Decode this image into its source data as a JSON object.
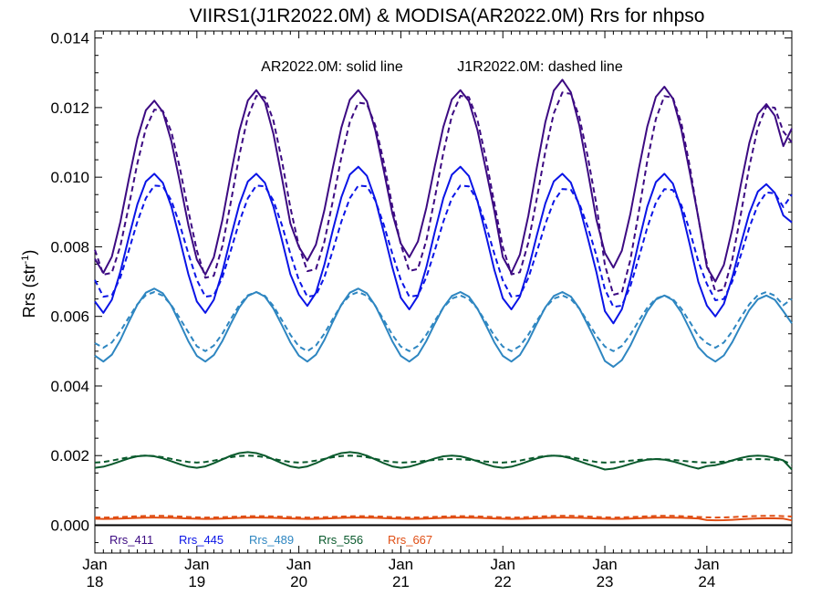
{
  "chart_data": {
    "type": "line",
    "title": "VIIRS1(J1R2022.0M) & MODISA(AR2022.0M)  Rrs for nhpso",
    "annotation": {
      "solid": "AR2022.0M: solid line",
      "dashed": "J1R2022.0M: dashed line"
    },
    "ylabel": "Rrs (str",
    "ylabel_sup": "-1",
    "ylabel_close": ")",
    "ylim": [
      -0.0008,
      0.0142
    ],
    "yticks": [
      "0.000",
      "0.002",
      "0.004",
      "0.006",
      "0.008",
      "0.010",
      "0.012",
      "0.014"
    ],
    "ytick_values": [
      0,
      0.002,
      0.004,
      0.006,
      0.008,
      0.01,
      0.012,
      0.014
    ],
    "xlim": [
      2018.0,
      2024.833
    ],
    "xticks": [
      {
        "top": "Jan",
        "bottom": "18",
        "x": 2018
      },
      {
        "top": "Jan",
        "bottom": "19",
        "x": 2019
      },
      {
        "top": "Jan",
        "bottom": "20",
        "x": 2020
      },
      {
        "top": "Jan",
        "bottom": "21",
        "x": 2021
      },
      {
        "top": "Jan",
        "bottom": "22",
        "x": 2022
      },
      {
        "top": "Jan",
        "bottom": "23",
        "x": 2023
      },
      {
        "top": "Jan",
        "bottom": "24",
        "x": 2024
      }
    ],
    "zero_line": true,
    "grid": false,
    "legend_placement": "bottom-left inside plot",
    "legend": [
      "Rrs_411",
      "Rrs_445",
      "Rrs_489",
      "Rrs_556",
      "Rrs_667"
    ],
    "series": [
      {
        "name": "Rrs_411",
        "color": "#3c0a82",
        "solid": {
          "min": [
            0.00725,
            0.0072,
            0.0076,
            0.0077,
            0.00725,
            0.0074,
            0.007
          ],
          "max": [
            0.0122,
            0.0125,
            0.0125,
            0.0125,
            0.0128,
            0.0126,
            0.0121
          ],
          "trough_phase": 0.1,
          "peak_phase": 0.58,
          "end_value": 0.0114
        },
        "dashed": {
          "min": [
            0.0071,
            0.007,
            0.0072,
            0.0072,
            0.0071,
            0.0065,
            0.0066
          ],
          "max": [
            0.012,
            0.0124,
            0.0122,
            0.0124,
            0.0125,
            0.0124,
            0.0121
          ],
          "trough_phase": 0.11,
          "peak_phase": 0.62,
          "end_value": 0.011
        }
      },
      {
        "name": "Rrs_445",
        "color": "#0a14e6",
        "solid": {
          "min": [
            0.0061,
            0.0061,
            0.0063,
            0.0062,
            0.0062,
            0.0058,
            0.006
          ],
          "max": [
            0.0101,
            0.0101,
            0.0103,
            0.0103,
            0.0101,
            0.0101,
            0.0098
          ],
          "trough_phase": 0.1,
          "peak_phase": 0.58,
          "end_value": 0.0087
        },
        "dashed": {
          "min": [
            0.0065,
            0.0065,
            0.0065,
            0.0065,
            0.0065,
            0.0062,
            0.0064
          ],
          "max": [
            0.0098,
            0.0098,
            0.0098,
            0.0098,
            0.0097,
            0.0097,
            0.0096
          ],
          "trough_phase": 0.11,
          "peak_phase": 0.62,
          "end_value": 0.0095
        }
      },
      {
        "name": "Rrs_489",
        "color": "#2e86c1",
        "solid": {
          "min": [
            0.0047,
            0.0047,
            0.0047,
            0.0047,
            0.0047,
            0.00455,
            0.0047
          ],
          "max": [
            0.0068,
            0.0067,
            0.0068,
            0.0067,
            0.0067,
            0.0066,
            0.0066
          ],
          "trough_phase": 0.12,
          "peak_phase": 0.58,
          "end_value": 0.0058
        },
        "dashed": {
          "min": [
            0.0051,
            0.005,
            0.005,
            0.005,
            0.005,
            0.005,
            0.0051
          ],
          "max": [
            0.0067,
            0.0067,
            0.0067,
            0.0066,
            0.0066,
            0.0066,
            0.0067
          ],
          "trough_phase": 0.12,
          "peak_phase": 0.58,
          "end_value": 0.0065
        }
      },
      {
        "name": "Rrs_556",
        "color": "#0a5a2d",
        "solid": {
          "min": [
            0.00165,
            0.00165,
            0.00165,
            0.00165,
            0.00165,
            0.0016,
            0.0017
          ],
          "max": [
            0.002,
            0.0021,
            0.0021,
            0.002,
            0.002,
            0.0019,
            0.002
          ],
          "trough_phase": 0.15,
          "peak_phase": 0.5,
          "end_value": 0.0016
        },
        "dashed": {
          "min": [
            0.0018,
            0.0018,
            0.0018,
            0.0018,
            0.0018,
            0.0018,
            0.0018
          ],
          "max": [
            0.002,
            0.002,
            0.002,
            0.0019,
            0.002,
            0.0019,
            0.0019
          ],
          "trough_phase": 0.15,
          "peak_phase": 0.5,
          "end_value": 0.00175
        }
      },
      {
        "name": "Rrs_667",
        "color": "#e04e14",
        "solid": {
          "min": [
            0.00018,
            0.00018,
            0.00018,
            0.00018,
            0.00018,
            0.00018,
            0.00014
          ],
          "max": [
            0.00022,
            0.00022,
            0.00022,
            0.00022,
            0.00022,
            0.00022,
            0.0002
          ],
          "trough_phase": 0.15,
          "peak_phase": 0.6,
          "end_value": 0.00014
        },
        "dashed": {
          "min": [
            0.00022,
            0.00022,
            0.00022,
            0.00022,
            0.00022,
            0.00022,
            0.00022
          ],
          "max": [
            0.00027,
            0.00026,
            0.00026,
            0.00026,
            0.00027,
            0.00027,
            0.00027
          ],
          "trough_phase": 0.15,
          "peak_phase": 0.6,
          "end_value": 0.00025
        }
      }
    ]
  }
}
